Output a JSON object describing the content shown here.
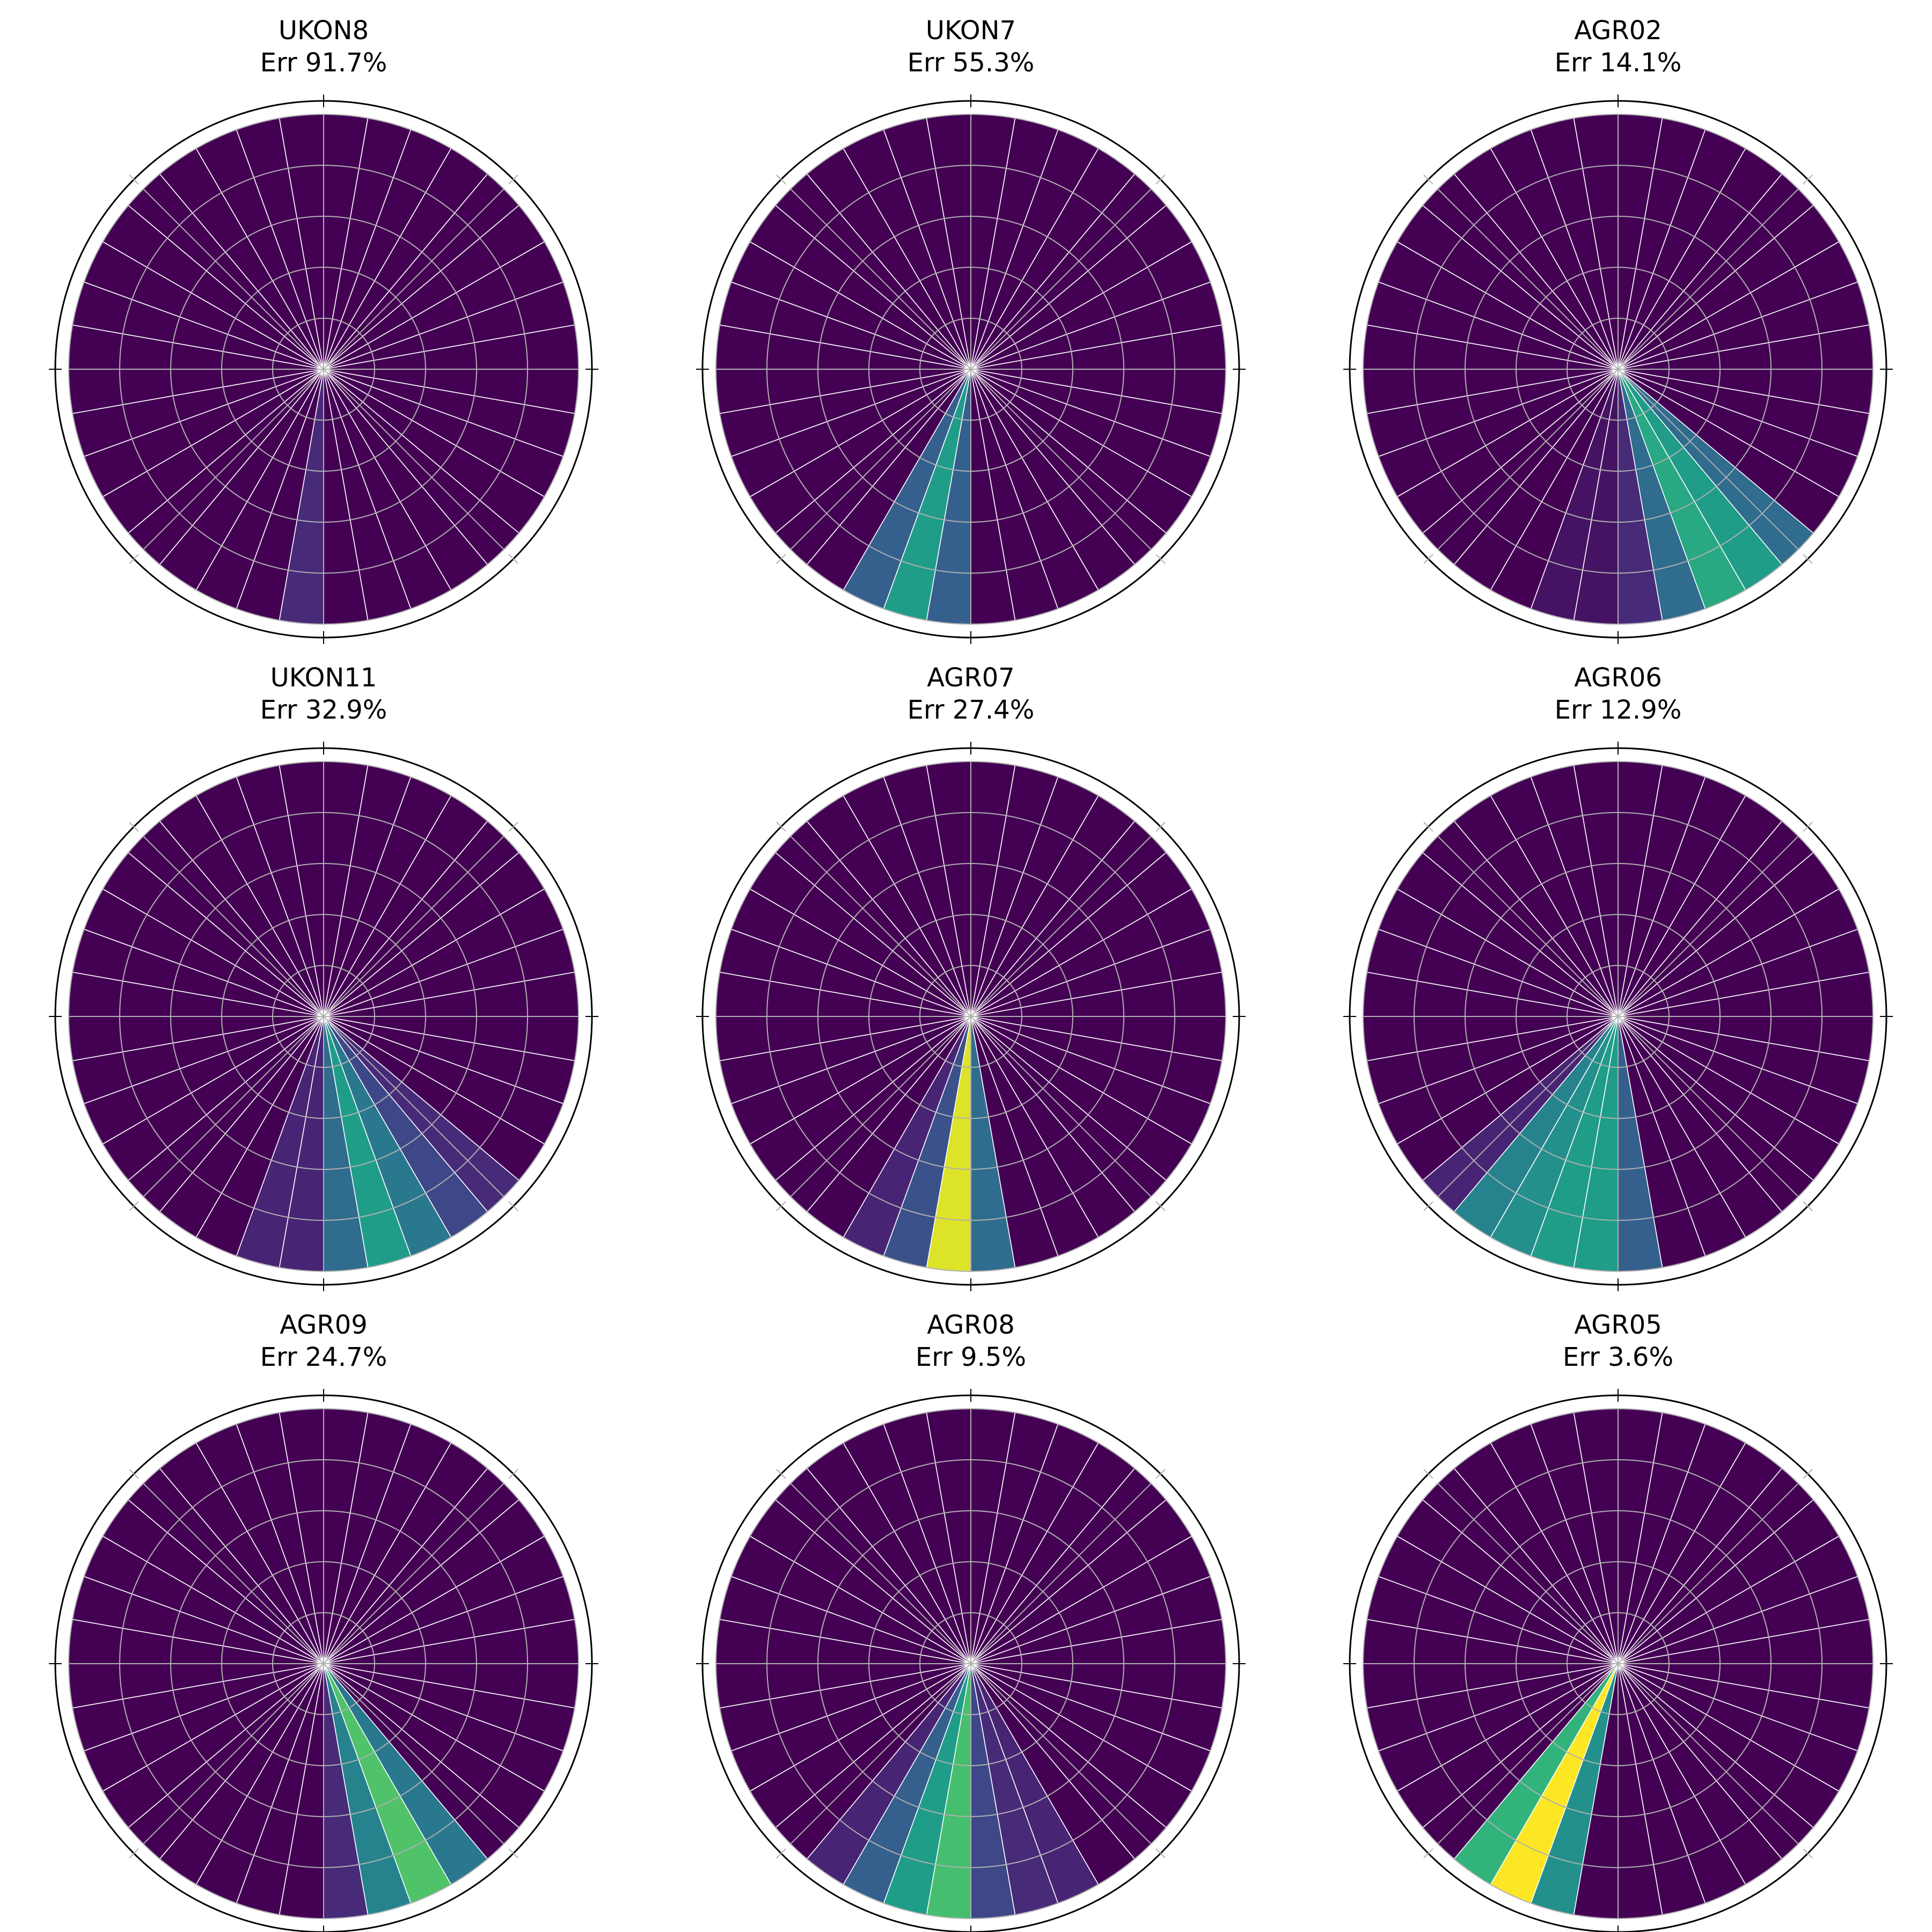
{
  "figure": {
    "colormap": "viridis",
    "colormap_stops": [
      "#440154",
      "#482878",
      "#3e4989",
      "#31688e",
      "#26828e",
      "#1f9e89",
      "#35b779",
      "#6ece58",
      "#b5de2b",
      "#fde725"
    ],
    "background": "#ffffff",
    "cell_edge_color": "#ffffff",
    "grid_color": "#b0b0b0"
  },
  "chart_data": [
    {
      "type": "polar-heatmap",
      "title": "UKON8",
      "subtitle": "Err 91.7%",
      "sectors": 36,
      "rings": 5,
      "highlights": [
        {
          "sector": 18,
          "level": 0.12
        }
      ]
    },
    {
      "type": "polar-heatmap",
      "title": "UKON7",
      "subtitle": "Err 55.3%",
      "sectors": 36,
      "rings": 5,
      "highlights": [
        {
          "sector": 20,
          "level": 0.3
        },
        {
          "sector": 19,
          "level": 0.55
        },
        {
          "sector": 18,
          "level": 0.3
        }
      ]
    },
    {
      "type": "polar-heatmap",
      "title": "AGR02",
      "subtitle": "Err 14.1%",
      "sectors": 36,
      "rings": 5,
      "highlights": [
        {
          "sector": 19,
          "level": 0.05
        },
        {
          "sector": 18,
          "level": 0.05
        },
        {
          "sector": 17,
          "level": 0.12
        },
        {
          "sector": 16,
          "level": 0.35
        },
        {
          "sector": 15,
          "level": 0.6
        },
        {
          "sector": 14,
          "level": 0.55
        },
        {
          "sector": 13,
          "level": 0.35
        }
      ]
    },
    {
      "type": "polar-heatmap",
      "title": "UKON11",
      "subtitle": "Err 32.9%",
      "sectors": 36,
      "rings": 5,
      "highlights": [
        {
          "sector": 19,
          "level": 0.1
        },
        {
          "sector": 18,
          "level": 0.1
        },
        {
          "sector": 17,
          "level": 0.35
        },
        {
          "sector": 16,
          "level": 0.55
        },
        {
          "sector": 15,
          "level": 0.4
        },
        {
          "sector": 14,
          "level": 0.22
        },
        {
          "sector": 13,
          "level": 0.12
        }
      ]
    },
    {
      "type": "polar-heatmap",
      "title": "AGR07",
      "subtitle": "Err 27.4%",
      "sectors": 36,
      "rings": 5,
      "highlights": [
        {
          "sector": 20,
          "level": 0.1
        },
        {
          "sector": 19,
          "level": 0.25
        },
        {
          "sector": 18,
          "level": 0.95
        },
        {
          "sector": 17,
          "level": 0.35
        }
      ]
    },
    {
      "type": "polar-heatmap",
      "title": "AGR06",
      "subtitle": "Err 12.9%",
      "sectors": 36,
      "rings": 5,
      "highlights": [
        {
          "sector": 22,
          "level": 0.1
        },
        {
          "sector": 21,
          "level": 0.45
        },
        {
          "sector": 20,
          "level": 0.5
        },
        {
          "sector": 19,
          "level": 0.55
        },
        {
          "sector": 18,
          "level": 0.55
        },
        {
          "sector": 17,
          "level": 0.3
        }
      ]
    },
    {
      "type": "polar-heatmap",
      "title": "AGR09",
      "subtitle": "Err 24.7%",
      "sectors": 36,
      "rings": 5,
      "highlights": [
        {
          "sector": 17,
          "level": 0.12
        },
        {
          "sector": 16,
          "level": 0.45
        },
        {
          "sector": 15,
          "level": 0.72
        },
        {
          "sector": 14,
          "level": 0.4
        }
      ]
    },
    {
      "type": "polar-heatmap",
      "title": "AGR08",
      "subtitle": "Err 9.5%",
      "sectors": 36,
      "rings": 5,
      "highlights": [
        {
          "sector": 21,
          "level": 0.1
        },
        {
          "sector": 20,
          "level": 0.3
        },
        {
          "sector": 19,
          "level": 0.55
        },
        {
          "sector": 18,
          "level": 0.7
        },
        {
          "sector": 17,
          "level": 0.22
        },
        {
          "sector": 16,
          "level": 0.12
        },
        {
          "sector": 15,
          "level": 0.1
        }
      ]
    },
    {
      "type": "polar-heatmap",
      "title": "AGR05",
      "subtitle": "Err 3.6%",
      "sectors": 36,
      "rings": 5,
      "highlights": [
        {
          "sector": 21,
          "level": 0.65
        },
        {
          "sector": 20,
          "level": 1.0
        },
        {
          "sector": 19,
          "level": 0.5
        }
      ]
    }
  ]
}
